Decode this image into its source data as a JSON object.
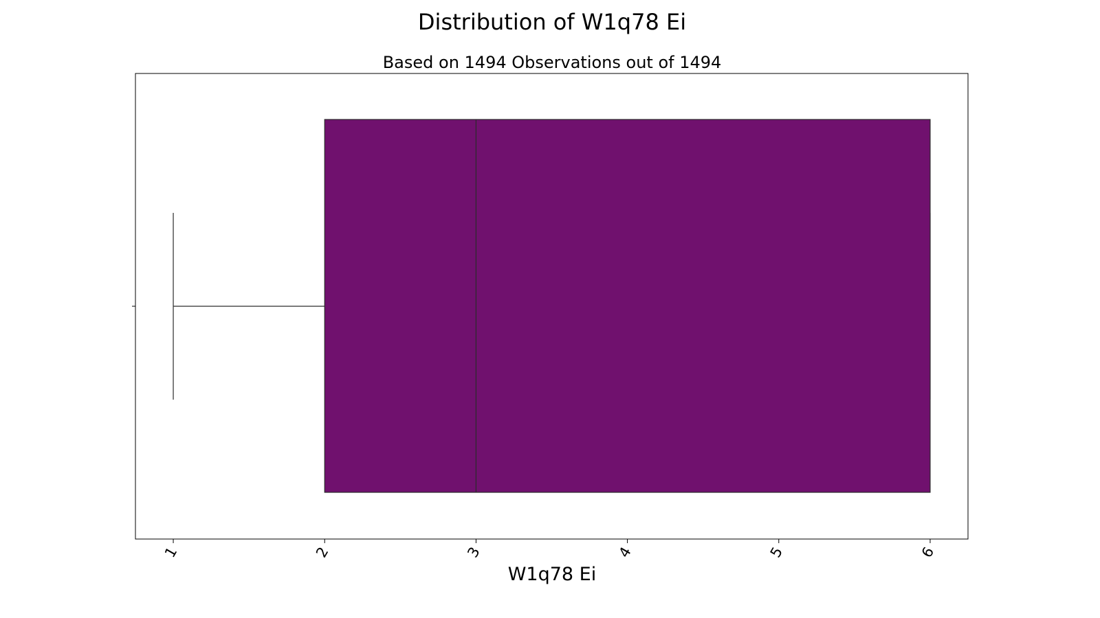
{
  "chart_data": {
    "type": "box",
    "orientation": "horizontal",
    "title": "Distribution of W1q78 Ei",
    "subtitle": "Based on 1494 Observations out of 1494",
    "xlabel": "W1q78 Ei",
    "ylabel": "",
    "xlim": [
      0.75,
      6.25
    ],
    "xticks": [
      1,
      2,
      3,
      4,
      5,
      6
    ],
    "tick_labels": [
      "1",
      "2",
      "3",
      "4",
      "5",
      "6"
    ],
    "box": {
      "whisker_low": 1,
      "q1": 2,
      "median": 3,
      "q3": 6,
      "whisker_high": 6
    },
    "colors": {
      "box_fill": "#70116e",
      "line": "#2b2b2b"
    },
    "grid": false,
    "legend": "none"
  }
}
